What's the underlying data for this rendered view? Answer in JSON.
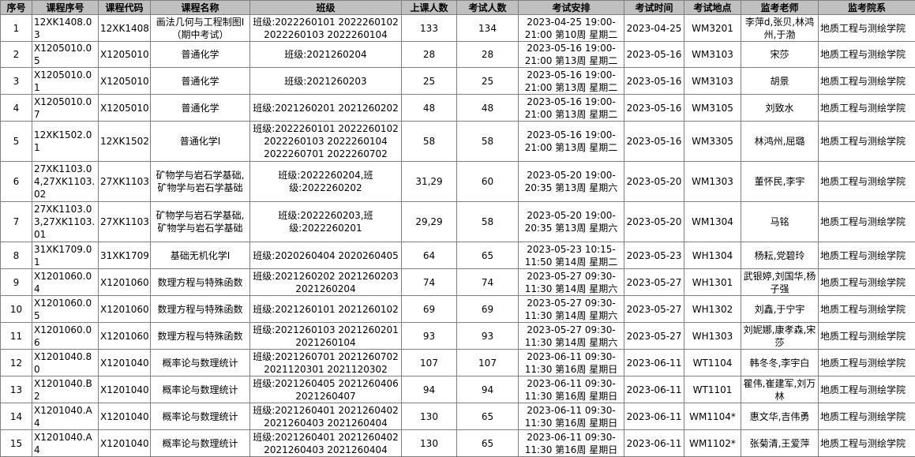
{
  "table": {
    "header": [
      "序号",
      "课程序号",
      "课程代码",
      "课程名称",
      "班级",
      "上课人数",
      "考试人数",
      "考试安排",
      "考试时间",
      "考试地点",
      "监考老师",
      "监考院系"
    ],
    "rows": [
      [
        1,
        "12XK1408.03",
        "12XK1408",
        "画法几何与工程制图Ⅰ（期中考试）",
        "班级:2022260101 2022260102 2022260103 2022260104",
        133,
        134,
        "2023-04-25 19:00-21:00 第10周 星期二",
        "2023-04-25",
        "WM3201",
        "李萍d,张贝,林鸿州,于渤",
        "地质工程与测绘学院"
      ],
      [
        2,
        "X1205010.05",
        "X1205010",
        "普通化学",
        "班级:2021260204",
        28,
        28,
        "2023-05-16 19:00-21:00 第13周 星期二",
        "2023-05-16",
        "WM3103",
        "宋莎",
        "地质工程与测绘学院"
      ],
      [
        3,
        "X1205010.01",
        "X1205010",
        "普通化学",
        "班级:2021260203",
        25,
        25,
        "2023-05-16 19:00-21:00 第13周 星期二",
        "2023-05-16",
        "WM3103",
        "胡景",
        "地质工程与测绘学院"
      ],
      [
        4,
        "X1205010.07",
        "X1205010",
        "普通化学",
        "班级:2021260201 2021260202",
        48,
        48,
        "2023-05-16 19:00-21:00 第13周 星期二",
        "2023-05-16",
        "WM3105",
        "刘致水",
        "地质工程与测绘学院"
      ],
      [
        5,
        "12XK1502.01",
        "12XK1502",
        "普通化学I",
        "班级:2022260101 2022260102 2022260103 2022260104 2022260701 2022260702",
        58,
        58,
        "2023-05-16 19:00-21:00 第13周 星期二",
        "2023-05-16",
        "WM3305",
        "林鸿州,屈璐",
        "地质工程与测绘学院"
      ],
      [
        6,
        "27XK1103.04,27XK1103.02",
        "27XK1103,27XK1103",
        "矿物学与岩石学基础,矿物学与岩石学基础",
        "班级:2022260204,班级:2022260202",
        "31,29",
        60,
        "2023-05-20 19:00-20:35 第13周 星期六",
        "2023-05-20",
        "WM1303",
        "董怀民,李宇",
        "地质工程与测绘学院"
      ],
      [
        7,
        "27XK1103.03,27XK1103.01",
        "27XK1103,27XK1103",
        "矿物学与岩石学基础,矿物学与岩石学基础",
        "班级:2022260203,班级:2022260201",
        "29,29",
        58,
        "2023-05-20 19:00-20:35 第13周 星期六",
        "2023-05-20",
        "WM1304",
        "马铭",
        "地质工程与测绘学院"
      ],
      [
        8,
        "31XK1709.01",
        "31XK1709",
        "基础无机化学I",
        "班级:2020260404 2020260405",
        64,
        65,
        "2023-05-23 10:15-11:50 第14周 星期二",
        "2023-05-23",
        "WH1304",
        "杨耘,党碧玲",
        "地质工程与测绘学院"
      ],
      [
        9,
        "X1201060.04",
        "X1201060",
        "数理方程与特殊函数",
        "班级:2021260202 2021260203 2021260204",
        74,
        74,
        "2023-05-27 09:30-11:30 第14周 星期六",
        "2023-05-27",
        "WH1301",
        "武银婷,刘国华,杨子强",
        "地质工程与测绘学院"
      ],
      [
        10,
        "X1201060.05",
        "X1201060",
        "数理方程与特殊函数",
        "班级:2021260101 2021260102",
        69,
        69,
        "2023-05-27 09:30-11:30 第14周 星期六",
        "2023-05-27",
        "WH1302",
        "刘鑫,于宁宇",
        "地质工程与测绘学院"
      ],
      [
        11,
        "X1201060.06",
        "X1201060",
        "数理方程与特殊函数",
        "班级:2021260103 2021260201 2021260104",
        93,
        93,
        "2023-05-27 09:30-11:30 第14周 星期六",
        "2023-05-27",
        "WH1303",
        "刘妮娜,康孝森,宋莎",
        "地质工程与测绘学院"
      ],
      [
        12,
        "X1201040.80",
        "X1201040",
        "概率论与数理统计",
        "班级:2021260701 2021260702 2021120301 2021120302",
        107,
        107,
        "2023-06-11 09:30-11:30 第16周 星期日",
        "2023-06-11",
        "WT1104",
        "韩冬冬,李宇白",
        "地质工程与测绘学院"
      ],
      [
        13,
        "X1201040.B2",
        "X1201040",
        "概率论与数理统计",
        "班级:2021260405 2021260406 2021260407",
        94,
        94,
        "2023-06-11 09:30-11:30 第16周 星期日",
        "2023-06-11",
        "WT1101",
        "瞿伟,崔建军,刘万林",
        "地质工程与测绘学院"
      ],
      [
        14,
        "X1201040.A4",
        "X1201040",
        "概率论与数理统计",
        "班级:2021260401 2021260402 2021260403 2021260404",
        130,
        65,
        "2023-06-11 09:30-11:30 第16周 星期日",
        "2023-06-11",
        "WM1104*",
        "惠文华,吉伟勇",
        "地质工程与测绘学院"
      ],
      [
        15,
        "X1201040.A4",
        "X1201040",
        "概率论与数理统计",
        "班级:2021260401 2021260402 2021260403 2021260404",
        130,
        65,
        "2023-06-11 09:30-11:30 第16周 星期日",
        "2023-06-11",
        "WM1102*",
        "张菊清,王爱萍",
        "地质工程与测绘学院"
      ]
    ]
  }
}
